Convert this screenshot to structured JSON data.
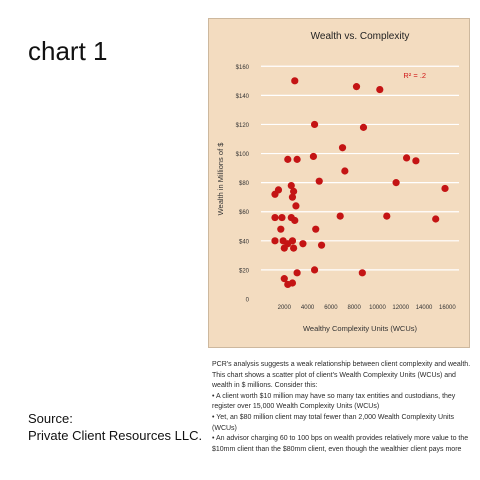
{
  "slide": {
    "title": "chart 1",
    "source_label": "Source:",
    "source_org": "Private Client Resources LLC."
  },
  "chart_data": {
    "type": "scatter",
    "title": "Wealth vs. Complexity",
    "xlabel": "Wealthy Complexity Units (WCUs)",
    "ylabel": "Wealth in Millions of $",
    "annotation": "R² = .2",
    "xlim": [
      0,
      17000
    ],
    "ylim": [
      0,
      165
    ],
    "x_ticks": [
      2000,
      4000,
      6000,
      8000,
      10000,
      12000,
      14000,
      16000
    ],
    "y_ticks": [
      0,
      20,
      40,
      60,
      80,
      100,
      120,
      140,
      160
    ],
    "y_tick_labels": [
      "0",
      "$20",
      "$40",
      "$60",
      "$80",
      "$100",
      "$120",
      "$140",
      "$160"
    ],
    "grid": true,
    "marker_color": "#c41414",
    "background_color": "#f3dcc0",
    "points": [
      {
        "x": 2900,
        "y": 150
      },
      {
        "x": 8200,
        "y": 146
      },
      {
        "x": 10200,
        "y": 144
      },
      {
        "x": 4600,
        "y": 120
      },
      {
        "x": 8800,
        "y": 118
      },
      {
        "x": 7000,
        "y": 104
      },
      {
        "x": 2300,
        "y": 96
      },
      {
        "x": 3100,
        "y": 96
      },
      {
        "x": 4500,
        "y": 98
      },
      {
        "x": 12500,
        "y": 97
      },
      {
        "x": 13300,
        "y": 95
      },
      {
        "x": 7200,
        "y": 88
      },
      {
        "x": 5000,
        "y": 81
      },
      {
        "x": 11600,
        "y": 80
      },
      {
        "x": 15800,
        "y": 76
      },
      {
        "x": 2600,
        "y": 78
      },
      {
        "x": 2800,
        "y": 74
      },
      {
        "x": 2700,
        "y": 70
      },
      {
        "x": 1200,
        "y": 72
      },
      {
        "x": 1500,
        "y": 75
      },
      {
        "x": 3000,
        "y": 64
      },
      {
        "x": 1200,
        "y": 56
      },
      {
        "x": 1800,
        "y": 56
      },
      {
        "x": 2600,
        "y": 56
      },
      {
        "x": 2900,
        "y": 54
      },
      {
        "x": 6800,
        "y": 57
      },
      {
        "x": 10800,
        "y": 57
      },
      {
        "x": 15000,
        "y": 55
      },
      {
        "x": 1700,
        "y": 48
      },
      {
        "x": 4700,
        "y": 48
      },
      {
        "x": 1200,
        "y": 40
      },
      {
        "x": 1900,
        "y": 40
      },
      {
        "x": 2300,
        "y": 38
      },
      {
        "x": 2700,
        "y": 40
      },
      {
        "x": 2000,
        "y": 35
      },
      {
        "x": 2800,
        "y": 35
      },
      {
        "x": 3600,
        "y": 38
      },
      {
        "x": 5200,
        "y": 37
      },
      {
        "x": 3100,
        "y": 18
      },
      {
        "x": 4600,
        "y": 20
      },
      {
        "x": 8700,
        "y": 18
      },
      {
        "x": 2000,
        "y": 14
      },
      {
        "x": 2300,
        "y": 10
      },
      {
        "x": 2700,
        "y": 11
      }
    ]
  },
  "caption": {
    "intro": "PCR's analysis suggests a weak relationship between client complexity and wealth. This chart shows a scatter plot of client's Wealth Complexity Units (WCUs) and wealth in $ millions. Consider this:",
    "bullets": [
      "• A client worth $10 million may have so many tax entities and custodians, they register over 15,000 Wealth Complexity Units (WCUs)",
      "• Yet, an $80 million client may total fewer than 2,000 Wealth Complexity Units (WCUs)",
      "• An advisor charging 60 to 100 bps on wealth provides relatively more value to the $10mm client than the $80mm client, even though the wealthier client pays more"
    ]
  }
}
